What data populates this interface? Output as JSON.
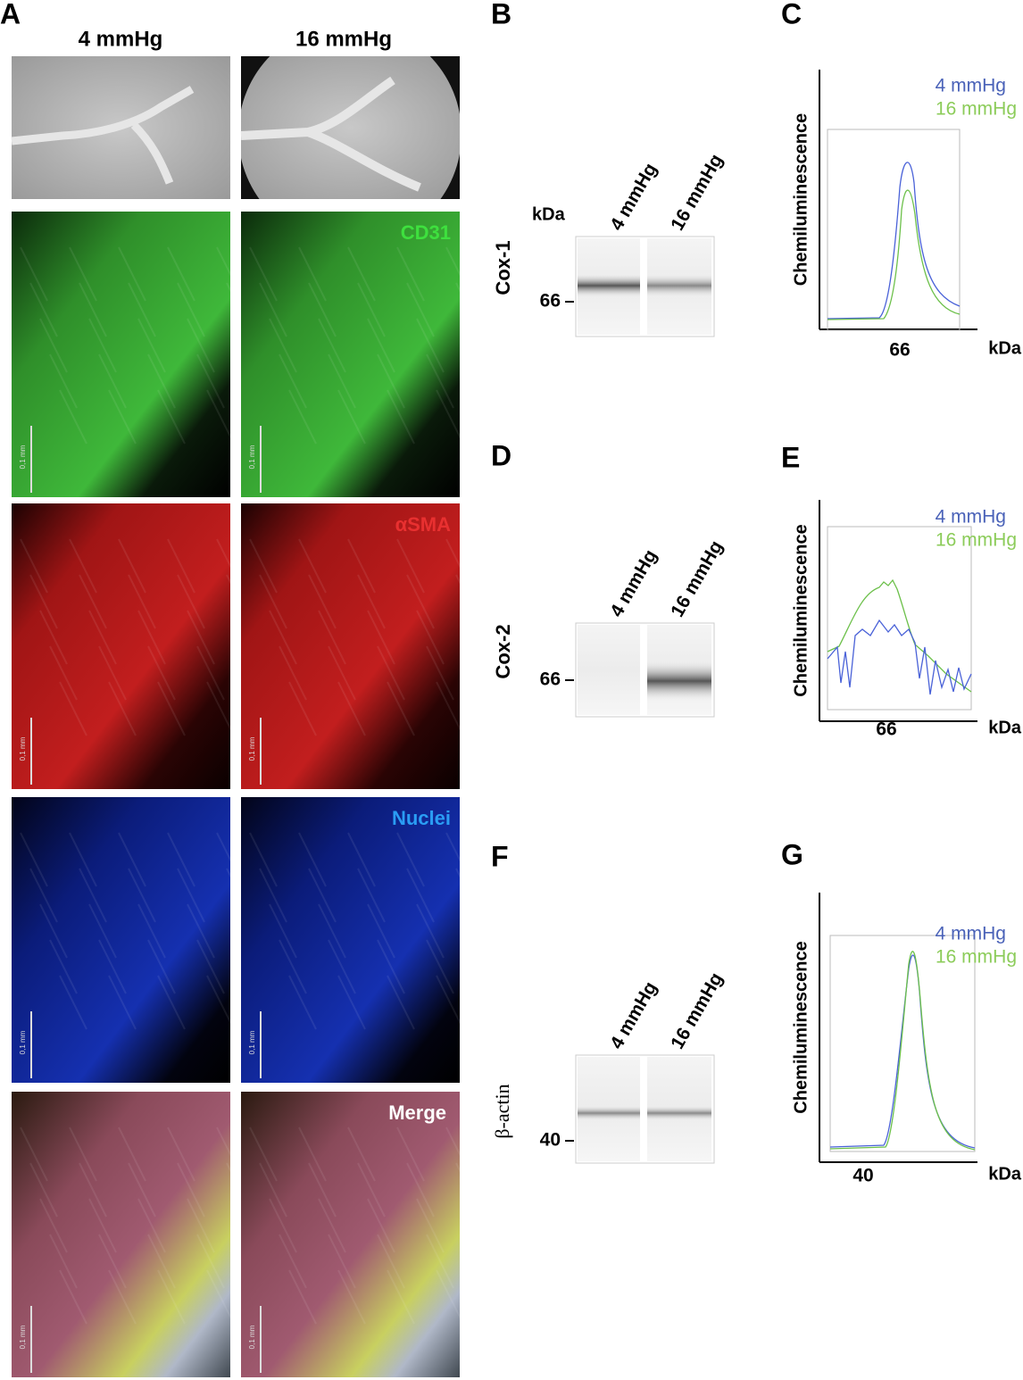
{
  "panels": {
    "A": {
      "label": "A",
      "columns": [
        "4 mmHg",
        "16 mmHg"
      ],
      "channels": [
        "CD31",
        "αSMA",
        "Nuclei",
        "Merge"
      ],
      "scale_bar": "0,1 mm"
    },
    "B": {
      "label": "B",
      "protein": "Cox-1",
      "unit": "kDa",
      "lanes": [
        "4 mmHg",
        "16 mmHg"
      ],
      "marker": "66"
    },
    "C": {
      "label": "C",
      "y_label": "Chemiluminescence",
      "x_tick": "66",
      "x_unit": "kDa",
      "legend": [
        "4 mmHg",
        "16 mmHg"
      ]
    },
    "D": {
      "label": "D",
      "protein": "Cox-2",
      "lanes": [
        "4 mmHg",
        "16 mmHg"
      ],
      "marker": "66"
    },
    "E": {
      "label": "E",
      "y_label": "Chemiluminescence",
      "x_tick": "66",
      "x_unit": "kDa",
      "legend": [
        "4 mmHg",
        "16 mmHg"
      ]
    },
    "F": {
      "label": "F",
      "protein": "β-actin",
      "lanes": [
        "4 mmHg",
        "16 mmHg"
      ],
      "marker": "40"
    },
    "G": {
      "label": "G",
      "y_label": "Chemiluminescence",
      "x_tick": "40",
      "x_unit": "kDa",
      "legend": [
        "4 mmHg",
        "16 mmHg"
      ]
    }
  }
}
